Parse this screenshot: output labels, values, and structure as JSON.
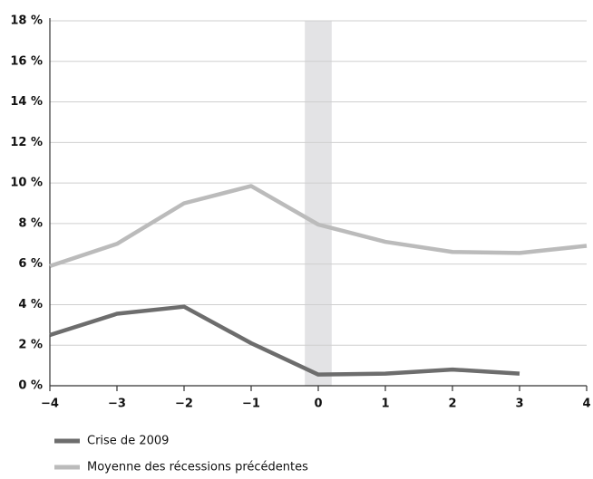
{
  "chart_data": {
    "type": "line",
    "x": [
      -4,
      -3,
      -2,
      -1,
      0,
      1,
      2,
      3,
      4
    ],
    "series": [
      {
        "name": "Crise de 2009",
        "color": "#6d6d6d",
        "values": [
          2.5,
          3.55,
          3.9,
          2.1,
          0.55,
          0.6,
          0.8,
          0.6,
          null
        ]
      },
      {
        "name": "Moyenne des récessions précédentes",
        "color": "#bbbbbb",
        "values": [
          5.9,
          7.0,
          9.0,
          9.85,
          7.95,
          7.1,
          6.6,
          6.55,
          6.9
        ]
      }
    ],
    "xlim": [
      -4,
      4
    ],
    "xticks": [
      {
        "value": -4,
        "label": "−4"
      },
      {
        "value": -3,
        "label": "−3"
      },
      {
        "value": -2,
        "label": "−2"
      },
      {
        "value": -1,
        "label": "−1"
      },
      0,
      1,
      2,
      3,
      4
    ],
    "ylim": [
      0,
      18
    ],
    "yticks": [
      {
        "value": 0,
        "label": "0 %"
      },
      {
        "value": 2,
        "label": "2 %"
      },
      {
        "value": 4,
        "label": "4 %"
      },
      {
        "value": 6,
        "label": "6 %"
      },
      {
        "value": 8,
        "label": "8 %"
      },
      {
        "value": 10,
        "label": "10 %"
      },
      {
        "value": 12,
        "label": "12 %"
      },
      {
        "value": 14,
        "label": "14 %"
      },
      {
        "value": 16,
        "label": "16 %"
      },
      {
        "value": 18,
        "label": "18 %"
      }
    ],
    "shaded_xrange": [
      -0.2,
      0.2
    ],
    "grid": true,
    "legend": "bottom"
  }
}
